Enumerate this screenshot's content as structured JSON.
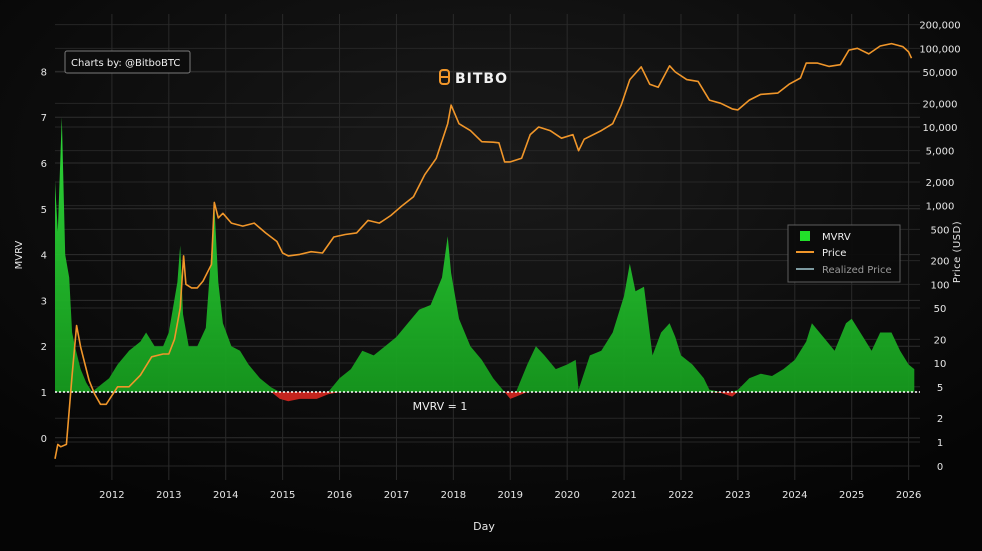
{
  "credit": "Charts by: @BitboBTC",
  "brand": "BITBO",
  "chart_data": {
    "type": "area",
    "xlabel": "Day",
    "ylabel_left": "MVRV",
    "ylabel_right": "Price (USD)",
    "x_tick_labels": [
      "2012",
      "2013",
      "2014",
      "2015",
      "2016",
      "2017",
      "2018",
      "2019",
      "2020",
      "2021",
      "2022",
      "2023",
      "2024",
      "2025",
      "2026"
    ],
    "x_range": [
      2011.0,
      2026.2
    ],
    "left_axis": {
      "ticks": [
        0,
        1,
        2,
        3,
        4,
        5,
        6,
        7,
        8
      ],
      "range": [
        -0.7,
        8.8
      ]
    },
    "right_axis": {
      "scale": "log",
      "tick_values": [
        0,
        1,
        2,
        5,
        10,
        20,
        50,
        100,
        200,
        500,
        1000,
        2000,
        5000,
        10000,
        20000,
        50000,
        100000,
        200000
      ],
      "tick_labels": [
        "0",
        "1",
        "2",
        "5",
        "10",
        "20",
        "50",
        "100",
        "200",
        "500",
        "1,000",
        "2,000",
        "5,000",
        "10,000",
        "20,000",
        "50,000",
        "100,000",
        "200,000"
      ]
    },
    "threshold": {
      "value": 1,
      "label": "MVRV = 1"
    },
    "legend": {
      "position": "right",
      "items": [
        {
          "name": "MVRV",
          "color": "#22e02a"
        },
        {
          "name": "Price",
          "color": "#f0962a"
        },
        {
          "name": "Realized Price",
          "color": "#7d9aa0"
        }
      ]
    },
    "grid": true,
    "colors": {
      "above_one": "#22c42a",
      "below_one": "#c3241e",
      "price": "#f0962a",
      "background": "#070707"
    },
    "series": [
      {
        "name": "MVRV",
        "x": [
          2011.0,
          2011.05,
          2011.12,
          2011.18,
          2011.25,
          2011.3,
          2011.35,
          2011.45,
          2011.55,
          2011.65,
          2011.75,
          2011.85,
          2011.95,
          2012.1,
          2012.3,
          2012.5,
          2012.6,
          2012.75,
          2012.9,
          2013.0,
          2013.15,
          2013.2,
          2013.25,
          2013.35,
          2013.5,
          2013.65,
          2013.75,
          2013.8,
          2013.87,
          2013.95,
          2014.1,
          2014.25,
          2014.4,
          2014.6,
          2014.8,
          2014.95,
          2015.1,
          2015.3,
          2015.6,
          2015.8,
          2016.0,
          2016.2,
          2016.4,
          2016.6,
          2016.8,
          2017.0,
          2017.2,
          2017.4,
          2017.6,
          2017.8,
          2017.9,
          2017.96,
          2018.1,
          2018.3,
          2018.5,
          2018.7,
          2018.9,
          2019.0,
          2019.1,
          2019.3,
          2019.45,
          2019.6,
          2019.8,
          2020.0,
          2020.15,
          2020.2,
          2020.4,
          2020.6,
          2020.8,
          2021.0,
          2021.1,
          2021.2,
          2021.35,
          2021.5,
          2021.65,
          2021.8,
          2021.9,
          2022.0,
          2022.2,
          2022.4,
          2022.5,
          2022.7,
          2022.9,
          2023.0,
          2023.2,
          2023.4,
          2023.6,
          2023.8,
          2024.0,
          2024.2,
          2024.3,
          2024.5,
          2024.7,
          2024.9,
          2025.0,
          2025.2,
          2025.35,
          2025.5,
          2025.7,
          2025.85,
          2026.0,
          2026.1
        ],
        "y": [
          5.6,
          4.5,
          7.0,
          4.0,
          3.5,
          2.3,
          2.0,
          1.5,
          1.2,
          1.0,
          1.1,
          1.2,
          1.3,
          1.6,
          1.9,
          2.1,
          2.3,
          2.0,
          2.0,
          2.3,
          3.4,
          4.2,
          2.7,
          2.0,
          2.0,
          2.4,
          4.1,
          5.1,
          3.4,
          2.5,
          2.0,
          1.9,
          1.6,
          1.3,
          1.1,
          0.85,
          0.8,
          0.85,
          0.85,
          0.95,
          1.3,
          1.5,
          1.9,
          1.8,
          2.0,
          2.2,
          2.5,
          2.8,
          2.9,
          3.5,
          4.4,
          3.6,
          2.6,
          2.0,
          1.7,
          1.3,
          1.0,
          0.85,
          0.9,
          1.6,
          2.0,
          1.8,
          1.5,
          1.6,
          1.7,
          1.05,
          1.8,
          1.9,
          2.3,
          3.1,
          3.8,
          3.2,
          3.3,
          1.8,
          2.3,
          2.5,
          2.2,
          1.8,
          1.6,
          1.3,
          1.05,
          0.98,
          0.9,
          1.05,
          1.3,
          1.4,
          1.35,
          1.5,
          1.7,
          2.1,
          2.5,
          2.2,
          1.9,
          2.5,
          2.6,
          2.2,
          1.9,
          2.3,
          2.3,
          1.9,
          1.6,
          1.5
        ]
      },
      {
        "name": "Price",
        "x": [
          2011.0,
          2011.05,
          2011.1,
          2011.2,
          2011.3,
          2011.38,
          2011.45,
          2011.6,
          2011.7,
          2011.8,
          2011.9,
          2012.1,
          2012.3,
          2012.5,
          2012.7,
          2012.9,
          2013.0,
          2013.1,
          2013.2,
          2013.26,
          2013.3,
          2013.4,
          2013.5,
          2013.6,
          2013.75,
          2013.8,
          2013.87,
          2013.95,
          2014.1,
          2014.3,
          2014.5,
          2014.7,
          2014.9,
          2015.0,
          2015.1,
          2015.3,
          2015.5,
          2015.7,
          2015.9,
          2016.1,
          2016.3,
          2016.5,
          2016.7,
          2016.9,
          2017.1,
          2017.3,
          2017.5,
          2017.7,
          2017.9,
          2017.96,
          2018.1,
          2018.3,
          2018.5,
          2018.7,
          2018.8,
          2018.9,
          2019.0,
          2019.2,
          2019.35,
          2019.5,
          2019.7,
          2019.9,
          2020.1,
          2020.2,
          2020.3,
          2020.6,
          2020.8,
          2020.95,
          2021.1,
          2021.3,
          2021.45,
          2021.6,
          2021.8,
          2021.9,
          2022.1,
          2022.3,
          2022.5,
          2022.7,
          2022.9,
          2023.0,
          2023.2,
          2023.4,
          2023.7,
          2023.9,
          2024.1,
          2024.2,
          2024.4,
          2024.6,
          2024.8,
          2024.95,
          2025.1,
          2025.3,
          2025.5,
          2025.7,
          2025.8,
          2025.9,
          2026.0,
          2026.05
        ],
        "y": [
          0.3,
          0.9,
          0.8,
          0.9,
          7,
          30,
          16,
          6,
          4,
          3,
          3,
          5,
          5,
          7,
          12,
          13,
          13,
          20,
          50,
          230,
          100,
          90,
          90,
          110,
          180,
          1100,
          700,
          800,
          600,
          550,
          600,
          450,
          350,
          250,
          230,
          240,
          260,
          250,
          400,
          430,
          450,
          650,
          600,
          750,
          1000,
          1300,
          2500,
          4000,
          11000,
          19000,
          11000,
          9000,
          6500,
          6400,
          6300,
          3600,
          3600,
          4000,
          8000,
          10000,
          9000,
          7200,
          8000,
          5000,
          7000,
          9000,
          11000,
          19000,
          40000,
          58000,
          35000,
          32000,
          60000,
          50000,
          40000,
          38000,
          22000,
          20000,
          17000,
          16500,
          22000,
          26000,
          27000,
          35000,
          42000,
          65000,
          65000,
          59000,
          62000,
          95000,
          100000,
          85000,
          107000,
          115000,
          110000,
          105000,
          90000,
          75000
        ]
      }
    ]
  }
}
